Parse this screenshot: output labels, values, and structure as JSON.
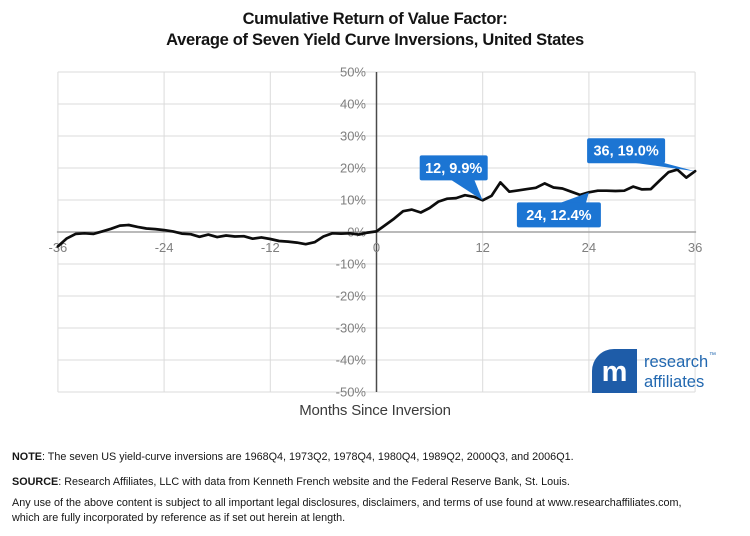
{
  "title": {
    "line1": "Cumulative Return of Value Factor:",
    "line2": "Average of Seven Yield Curve Inversions, United States"
  },
  "chart_data": {
    "type": "line",
    "title": "Cumulative Return of Value Factor: Average of Seven Yield Curve Inversions, United States",
    "xlabel": "Months Since Inversion",
    "ylabel": "",
    "xlim": [
      -36,
      36
    ],
    "ylim_pct": [
      -50,
      50
    ],
    "grid": true,
    "legend_position": "none",
    "x_ticks": [
      -36,
      -24,
      -12,
      0,
      12,
      24,
      36
    ],
    "y_ticks_pct": [
      50,
      40,
      30,
      20,
      10,
      0,
      -10,
      -20,
      -30,
      -40,
      -50
    ],
    "y_tick_suffix": "%",
    "months": [
      -36,
      -35,
      -34,
      -33,
      -32,
      -31,
      -30,
      -29,
      -28,
      -27,
      -26,
      -25,
      -24,
      -23,
      -22,
      -21,
      -20,
      -19,
      -18,
      -17,
      -16,
      -15,
      -14,
      -13,
      -12,
      -11,
      -10,
      -9,
      -8,
      -7,
      -6,
      -5,
      -4,
      -3,
      -2,
      -1,
      0,
      1,
      2,
      3,
      4,
      5,
      6,
      7,
      8,
      9,
      10,
      11,
      12,
      13,
      14,
      15,
      16,
      17,
      18,
      19,
      20,
      21,
      22,
      23,
      24,
      25,
      26,
      27,
      28,
      29,
      30,
      31,
      32,
      33,
      34,
      35,
      36
    ],
    "values_pct": [
      -4.5,
      -2.0,
      -0.6,
      -0.4,
      -0.6,
      0.2,
      1.0,
      2.0,
      2.2,
      1.6,
      1.1,
      0.9,
      0.6,
      0.2,
      -0.5,
      -0.7,
      -1.5,
      -0.8,
      -1.6,
      -1.1,
      -1.4,
      -1.3,
      -2.1,
      -1.7,
      -2.2,
      -2.8,
      -3.0,
      -3.3,
      -3.8,
      -3.2,
      -1.4,
      -0.4,
      -0.5,
      -0.4,
      -0.8,
      -0.2,
      0.2,
      2.2,
      4.2,
      6.5,
      7.0,
      6.1,
      7.5,
      9.5,
      10.4,
      10.6,
      11.5,
      11.0,
      9.9,
      11.3,
      15.5,
      12.6,
      13.0,
      13.4,
      13.8,
      15.2,
      13.9,
      13.6,
      12.6,
      11.6,
      12.4,
      12.9,
      12.9,
      12.8,
      12.9,
      14.2,
      13.3,
      13.4,
      16.1,
      18.7,
      19.5,
      17.0,
      19.0
    ],
    "annotations": [
      {
        "text": "12, 9.9%",
        "month": 12,
        "value_pct": 9.9
      },
      {
        "text": "24, 12.4%",
        "month": 24,
        "value_pct": 12.4
      },
      {
        "text": "36, 19.0%",
        "month": 36,
        "value_pct": 19.0
      }
    ],
    "colors": {
      "line": "#0d0d0d",
      "callout": "#1c75d3",
      "callout_text": "#ffffff",
      "grid": "#dbdbdb",
      "zero_line": "#a3a3a3",
      "axis_line": "#4a4a4a",
      "tick_text": "#7f7f7f"
    }
  },
  "logo": {
    "monogram": "m",
    "line1": "research",
    "trademark": "™",
    "line2": "affiliates",
    "mark_color": "#1e5ca8",
    "text_color": "#2268b0"
  },
  "footer": {
    "note_label": "NOTE",
    "note_text": ": The seven US yield-curve inversions are 1968Q4, 1973Q2, 1978Q4, 1980Q4, 1989Q2, 2000Q3, and 2006Q1.",
    "source_label": "SOURCE",
    "source_text": ": Research Affiliates, LLC with data from Kenneth French website and the Federal Reserve Bank, St. Louis.",
    "legal_line1": "Any use of the above content is subject to all important legal disclosures, disclaimers, and terms of use found at www.researchaffiliates.com,",
    "legal_line2": "which are fully incorporated by reference as if set out herein at length."
  }
}
